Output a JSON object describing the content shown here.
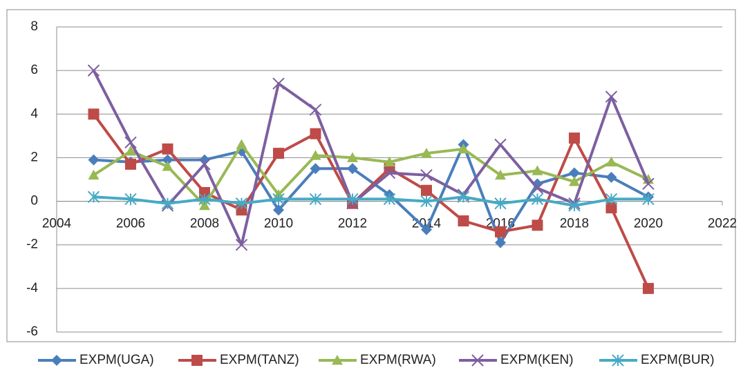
{
  "chart_data": {
    "type": "line",
    "x": [
      2005,
      2006,
      2007,
      2008,
      2009,
      2010,
      2011,
      2012,
      2013,
      2014,
      2015,
      2016,
      2017,
      2018,
      2019,
      2020
    ],
    "series": [
      {
        "name": "EXPM(UGA)",
        "color": "#4a7ebb",
        "marker": "diamond",
        "values": [
          1.9,
          1.8,
          1.9,
          1.9,
          2.3,
          -0.4,
          1.5,
          1.5,
          0.3,
          -1.3,
          2.6,
          -1.9,
          0.8,
          1.3,
          1.1,
          0.2
        ]
      },
      {
        "name": "EXPM(TANZ)",
        "color": "#be4b48",
        "marker": "square",
        "values": [
          4.0,
          1.7,
          2.4,
          0.4,
          -0.4,
          2.2,
          3.1,
          -0.1,
          1.5,
          0.5,
          -0.9,
          -1.4,
          -1.1,
          2.9,
          -0.3,
          -4.0
        ]
      },
      {
        "name": "EXPM(RWA)",
        "color": "#98b954",
        "marker": "triangle",
        "values": [
          1.2,
          2.3,
          1.6,
          -0.2,
          2.6,
          0.3,
          2.1,
          2.0,
          1.8,
          2.2,
          2.4,
          1.2,
          1.4,
          0.9,
          1.8,
          1.0
        ]
      },
      {
        "name": "EXPM(KEN)",
        "color": "#7d5fa0",
        "marker": "x",
        "values": [
          6.0,
          2.7,
          -0.2,
          1.7,
          -2.0,
          5.4,
          4.2,
          -0.1,
          1.3,
          1.2,
          0.3,
          2.6,
          0.6,
          -0.1,
          4.8,
          0.8
        ]
      },
      {
        "name": "EXPM(BUR)",
        "color": "#46aac5",
        "marker": "star",
        "values": [
          0.2,
          0.1,
          -0.1,
          0.1,
          -0.1,
          0.1,
          0.1,
          0.1,
          0.1,
          0.0,
          0.2,
          -0.1,
          0.1,
          -0.2,
          0.1,
          0.1
        ]
      }
    ],
    "xlim": [
      2004,
      2022
    ],
    "xticks": [
      2004,
      2006,
      2008,
      2010,
      2012,
      2014,
      2016,
      2018,
      2020,
      2022
    ],
    "ylim": [
      -6,
      8
    ],
    "yticks": [
      -6,
      -4,
      -2,
      0,
      2,
      4,
      6,
      8
    ],
    "grid": true,
    "legend": "bottom"
  }
}
